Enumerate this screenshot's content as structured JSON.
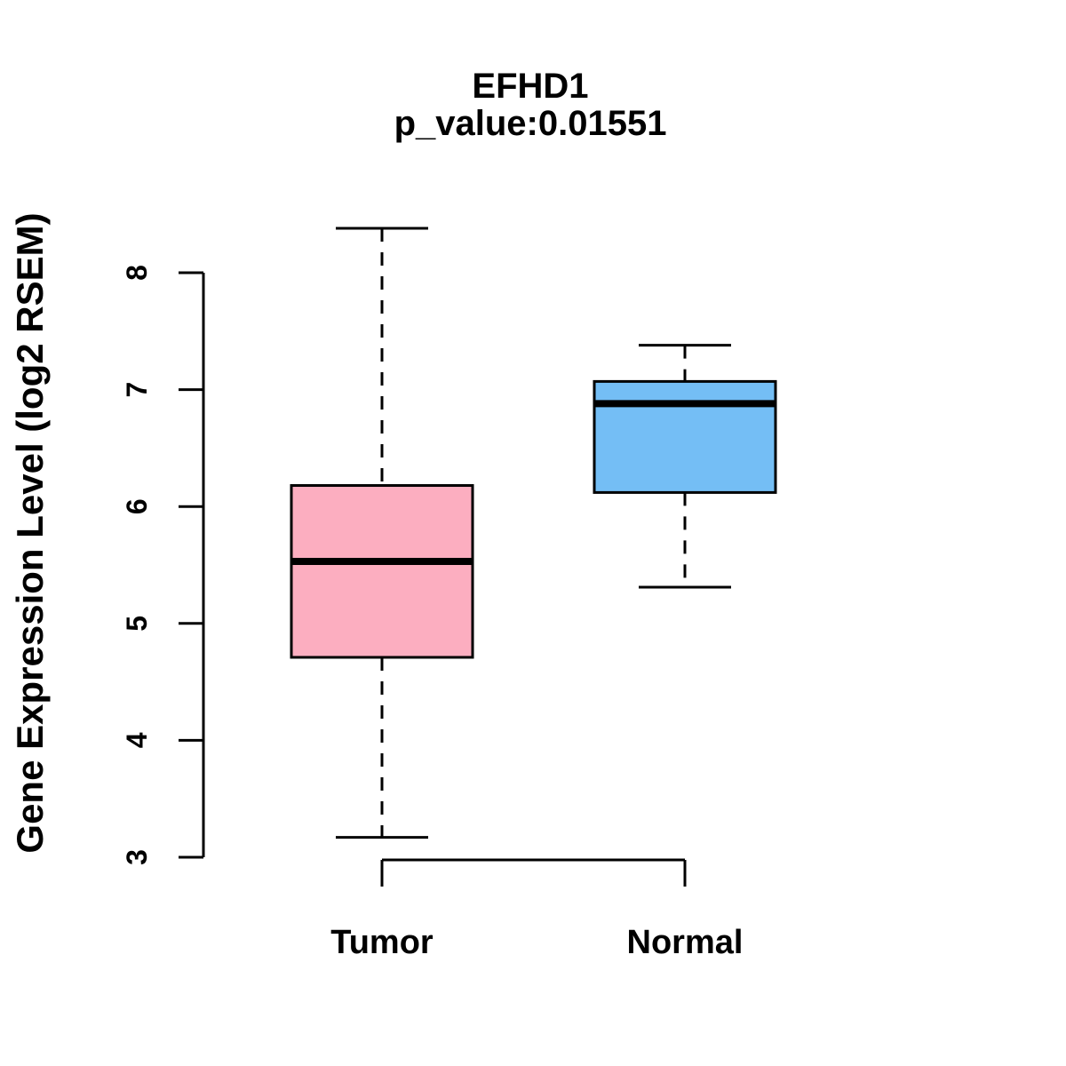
{
  "title": {
    "line1": "EFHD1",
    "line2": "p_value:0.01551"
  },
  "y_axis": {
    "label": "Gene Expression Level (log2 RSEM)",
    "ticks": [
      3,
      4,
      5,
      6,
      7,
      8
    ]
  },
  "x_axis": {
    "categories": [
      "Tumor",
      "Normal"
    ]
  },
  "colors": {
    "tumor_box": "#FCAEC0",
    "normal_box": "#74BEF5",
    "line": "#000000",
    "background": "#FFFFFF"
  },
  "chart_data": {
    "type": "boxplot",
    "title": "EFHD1",
    "subtitle": "p_value:0.01551",
    "ylabel": "Gene Expression Level (log2 RSEM)",
    "xlabel": "",
    "ylim": [
      3,
      8
    ],
    "yticks": [
      3,
      4,
      5,
      6,
      7,
      8
    ],
    "grid": false,
    "legend": "none",
    "categories": [
      "Tumor",
      "Normal"
    ],
    "series": [
      {
        "name": "Tumor",
        "color": "#FCAEC0",
        "lower_whisker": 3.17,
        "q1": 4.71,
        "median": 5.53,
        "q3": 6.18,
        "upper_whisker": 8.38
      },
      {
        "name": "Normal",
        "color": "#74BEF5",
        "lower_whisker": 5.31,
        "q1": 6.12,
        "median": 6.88,
        "q3": 7.07,
        "upper_whisker": 7.38
      }
    ]
  }
}
